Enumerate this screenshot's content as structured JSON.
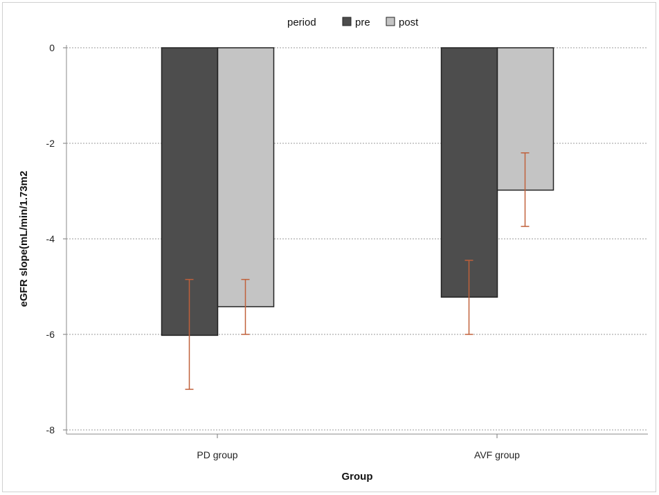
{
  "chart_data": {
    "type": "bar",
    "categories": [
      "PD group",
      "AVF group"
    ],
    "series": [
      {
        "name": "pre",
        "values": [
          -6.02,
          -5.22
        ],
        "error_low": [
          -7.15,
          -6.0
        ],
        "error_high": [
          -4.85,
          -4.45
        ],
        "color": "#4d4d4d"
      },
      {
        "name": "post",
        "values": [
          -5.42,
          -2.98
        ],
        "error_low": [
          -6.0,
          -3.74
        ],
        "error_high": [
          -4.85,
          -2.2
        ],
        "color": "#c4c4c4"
      }
    ],
    "legend_title": "period",
    "legend_position": "top-center",
    "xlabel": "Group",
    "ylabel": "eGFR slope(mL/min/1.73m2",
    "ylim": [
      -8,
      0
    ],
    "yticks": [
      0,
      -2,
      -4,
      -6,
      -8
    ],
    "grid": "horizontal-dotted",
    "error_bar_color": "#c0603a",
    "bar_edge_color": "#222222"
  }
}
